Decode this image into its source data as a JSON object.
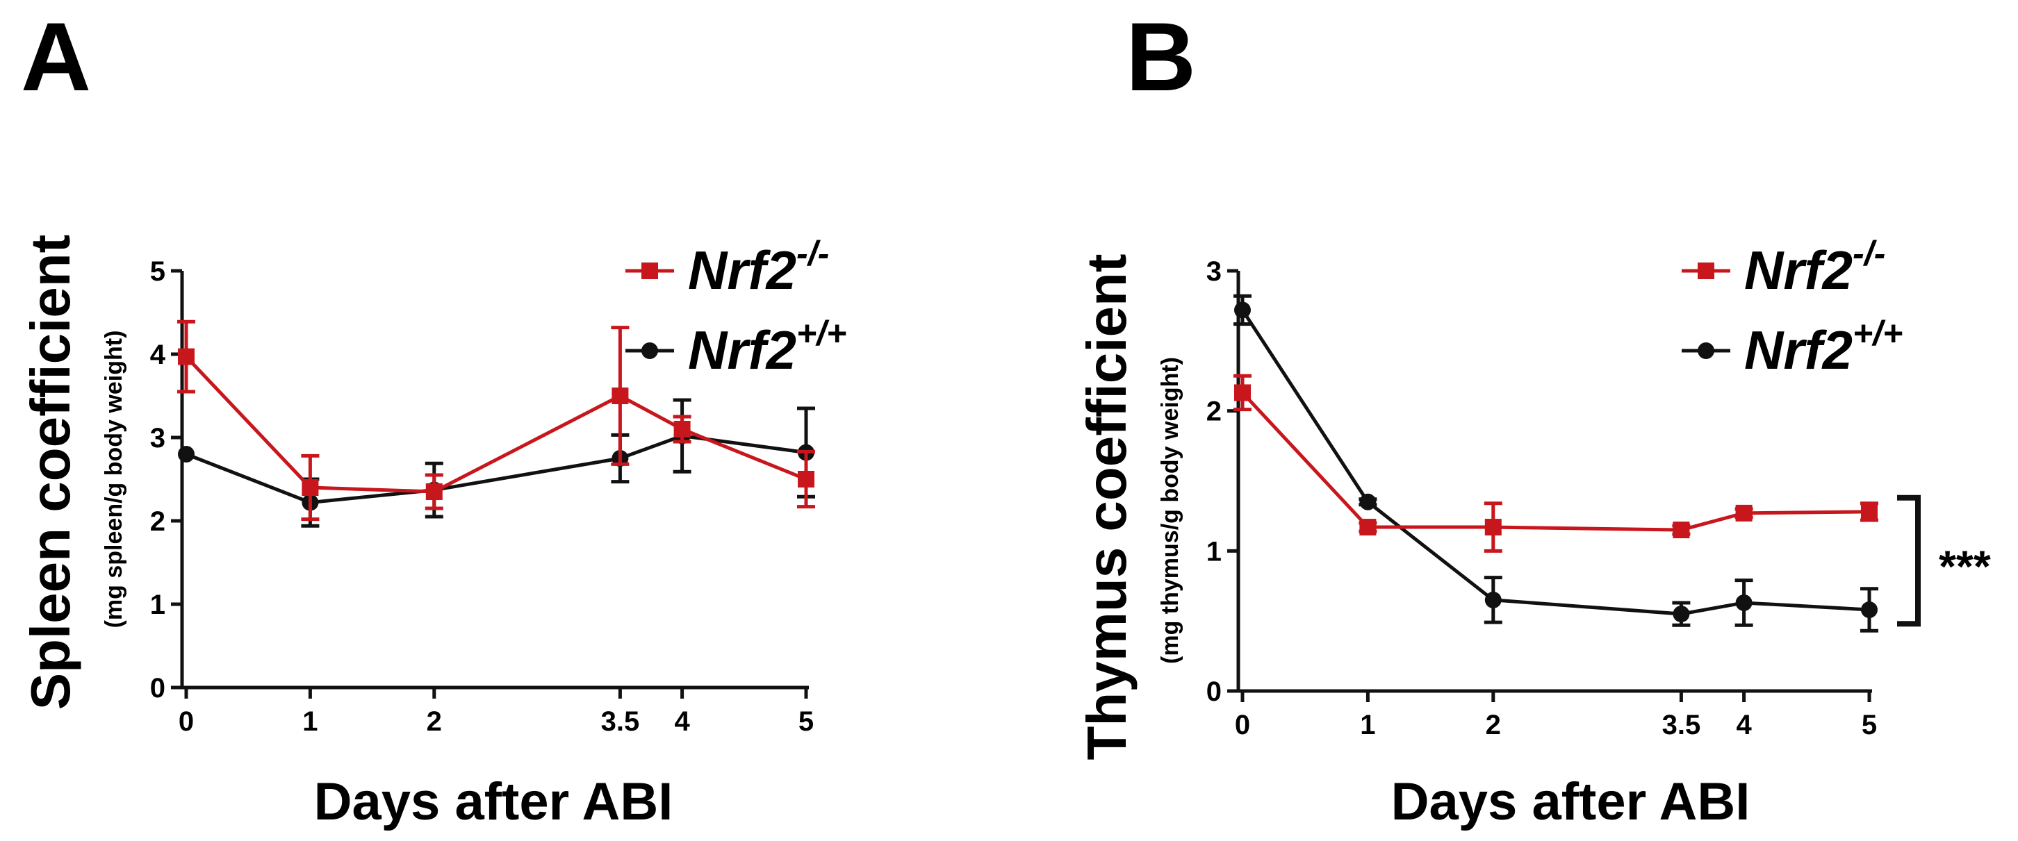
{
  "colors": {
    "ko": "#c8161d",
    "wt": "#111111",
    "axis": "#111111"
  },
  "chart_data": [
    {
      "panel_label": "A",
      "type": "line",
      "title": "",
      "xlabel": "Days after ABI",
      "ylabel": "Spleen coefficient",
      "ylabel_sub": "(mg spleen/g body weight)",
      "x": [
        0,
        1,
        2,
        3.5,
        4,
        5
      ],
      "categories": [
        "0",
        "1",
        "2",
        "3.5",
        "4",
        "5"
      ],
      "ylim": [
        0,
        5
      ],
      "yticks": [
        "0",
        "1",
        "2",
        "3",
        "4",
        "5"
      ],
      "legend_position": "top-right",
      "series": [
        {
          "name": "Nrf2",
          "superscript": "-/-",
          "marker": "square",
          "color_key": "ko",
          "values": [
            3.97,
            2.4,
            2.35,
            3.5,
            3.1,
            2.5
          ],
          "errors": [
            0.42,
            0.38,
            0.2,
            0.82,
            0.15,
            0.33
          ]
        },
        {
          "name": "Nrf2",
          "superscript": "+/+",
          "marker": "circle",
          "color_key": "wt",
          "values": [
            2.8,
            2.22,
            2.37,
            2.75,
            3.02,
            2.82
          ],
          "errors": [
            0.0,
            0.28,
            0.32,
            0.28,
            0.43,
            0.53
          ]
        }
      ],
      "significance": ""
    },
    {
      "panel_label": "B",
      "type": "line",
      "title": "",
      "xlabel": "Days after ABI",
      "ylabel": "Thymus coefficient",
      "ylabel_sub": "(mg thymus/g body weight)",
      "x": [
        0,
        1,
        2,
        3.5,
        4,
        5
      ],
      "categories": [
        "0",
        "1",
        "2",
        "3.5",
        "4",
        "5"
      ],
      "ylim": [
        0,
        3
      ],
      "yticks": [
        "0",
        "1",
        "2",
        "3"
      ],
      "legend_position": "top-right",
      "series": [
        {
          "name": "Nrf2",
          "superscript": "-/-",
          "marker": "square",
          "color_key": "ko",
          "values": [
            2.13,
            1.17,
            1.17,
            1.15,
            1.27,
            1.28
          ],
          "errors": [
            0.12,
            0.03,
            0.17,
            0.03,
            0.03,
            0.06
          ]
        },
        {
          "name": "Nrf2",
          "superscript": "+/+",
          "marker": "circle",
          "color_key": "wt",
          "values": [
            2.72,
            1.35,
            0.65,
            0.55,
            0.63,
            0.58
          ],
          "errors": [
            0.1,
            0.02,
            0.16,
            0.08,
            0.16,
            0.15
          ]
        }
      ],
      "significance": "***"
    }
  ]
}
